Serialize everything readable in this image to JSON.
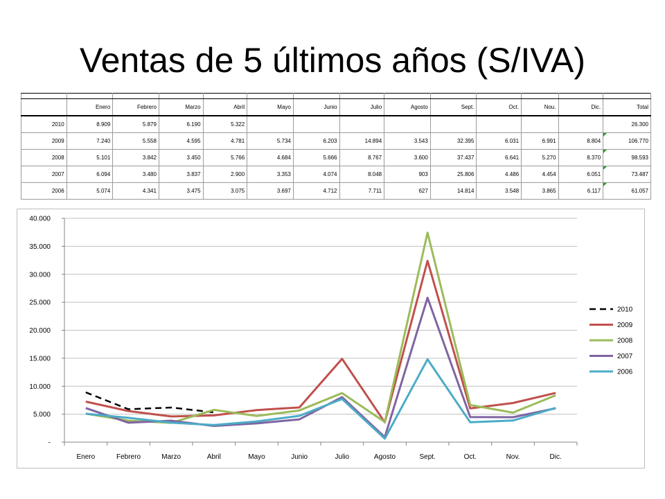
{
  "slide": {
    "title": "Ventas de 5 últimos años (S/IVA)"
  },
  "table": {
    "headers": [
      "",
      "Enero",
      "Febrero",
      "Marzo",
      "Abril",
      "Mayo",
      "Junio",
      "Julio",
      "Agosto",
      "Sept.",
      "Oct.",
      "Nou.",
      "Dic.",
      "Total"
    ],
    "rows": [
      {
        "year": "2010",
        "values": [
          "8.909",
          "5.879",
          "6.190",
          "5.322",
          "",
          "",
          "",
          "",
          "",
          "",
          "",
          ""
        ],
        "total": "26.300",
        "flag": false
      },
      {
        "year": "2009",
        "values": [
          "7.240",
          "5.558",
          "4.595",
          "4.781",
          "5.734",
          "6.203",
          "14.894",
          "3.543",
          "32.395",
          "6.031",
          "6.991",
          "8.804"
        ],
        "total": "106.770",
        "flag": true
      },
      {
        "year": "2008",
        "values": [
          "5.101",
          "3.842",
          "3.450",
          "5.766",
          "4.684",
          "5.666",
          "8.767",
          "3.600",
          "37.437",
          "6.641",
          "5.270",
          "8.370"
        ],
        "total": "98.593",
        "flag": true
      },
      {
        "year": "2007",
        "values": [
          "6.094",
          "3.480",
          "3.837",
          "2.900",
          "3.353",
          "4.074",
          "8.048",
          "903",
          "25.806",
          "4.486",
          "4.454",
          "6.051"
        ],
        "total": "73.487",
        "flag": true
      },
      {
        "year": "2006",
        "values": [
          "5.074",
          "4.341",
          "3.475",
          "3.075",
          "3.697",
          "4.712",
          "7.711",
          "627",
          "14.814",
          "3.548",
          "3.865",
          "6.117"
        ],
        "total": "61.057",
        "flag": true
      }
    ]
  },
  "chart_data": {
    "type": "line",
    "categories": [
      "Enero",
      "Febrero",
      "Marzo",
      "Abril",
      "Mayo",
      "Junio",
      "Julio",
      "Agosto",
      "Sept.",
      "Oct.",
      "Nov.",
      "Dic."
    ],
    "y_ticks": [
      "-",
      "5.000",
      "10.000",
      "15.000",
      "20.000",
      "25.000",
      "30.000",
      "35.000",
      "40.000"
    ],
    "ylim": [
      0,
      40000
    ],
    "legend_position": "right",
    "grid": true,
    "series": [
      {
        "name": "2010",
        "color": "#000000",
        "dash": true,
        "values": [
          8909,
          5879,
          6190,
          5322,
          null,
          null,
          null,
          null,
          null,
          null,
          null,
          null
        ]
      },
      {
        "name": "2009",
        "color": "#c0504d",
        "dash": false,
        "values": [
          7240,
          5558,
          4595,
          4781,
          5734,
          6203,
          14894,
          3543,
          32395,
          6031,
          6991,
          8804
        ]
      },
      {
        "name": "2008",
        "color": "#9bbb59",
        "dash": false,
        "values": [
          5101,
          3842,
          3450,
          5766,
          4684,
          5666,
          8767,
          3600,
          37437,
          6641,
          5270,
          8370
        ]
      },
      {
        "name": "2007",
        "color": "#8064a2",
        "dash": false,
        "values": [
          6094,
          3480,
          3837,
          2900,
          3353,
          4074,
          8048,
          903,
          25806,
          4486,
          4454,
          6051
        ]
      },
      {
        "name": "2006",
        "color": "#4bacc6",
        "dash": false,
        "values": [
          5074,
          4341,
          3475,
          3075,
          3697,
          4712,
          7711,
          627,
          14814,
          3548,
          3865,
          6117
        ]
      }
    ]
  }
}
